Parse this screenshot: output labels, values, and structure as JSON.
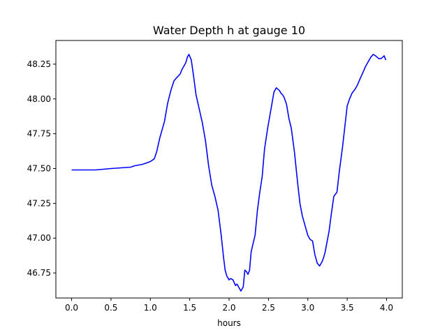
{
  "chart_data": {
    "type": "line",
    "title": "Water Depth h at gauge 10",
    "xlabel": "hours",
    "ylabel": "",
    "xlim": [
      -0.2,
      4.2
    ],
    "ylim": [
      46.57,
      48.42
    ],
    "xticks": [
      0.0,
      0.5,
      1.0,
      1.5,
      2.0,
      2.5,
      3.0,
      3.5,
      4.0
    ],
    "xtick_labels": [
      "0.0",
      "0.5",
      "1.0",
      "1.5",
      "2.0",
      "2.5",
      "3.0",
      "3.5",
      "4.0"
    ],
    "yticks": [
      46.75,
      47.0,
      47.25,
      47.5,
      47.75,
      48.0,
      48.25
    ],
    "ytick_labels": [
      "46.75",
      "47.00",
      "47.25",
      "47.50",
      "47.75",
      "48.00",
      "48.25"
    ],
    "grid": false,
    "series": [
      {
        "name": "",
        "color": "#0000ff",
        "x": [
          0.0,
          0.3,
          0.5,
          0.75,
          0.8,
          0.9,
          1.0,
          1.05,
          1.08,
          1.12,
          1.18,
          1.22,
          1.26,
          1.3,
          1.33,
          1.38,
          1.4,
          1.42,
          1.45,
          1.47,
          1.49,
          1.52,
          1.55,
          1.58,
          1.62,
          1.66,
          1.7,
          1.74,
          1.78,
          1.82,
          1.86,
          1.9,
          1.93,
          1.95,
          1.97,
          2.0,
          2.02,
          2.05,
          2.08,
          2.1,
          2.12,
          2.15,
          2.18,
          2.2,
          2.22,
          2.24,
          2.26,
          2.28,
          2.3,
          2.33,
          2.36,
          2.39,
          2.42,
          2.45,
          2.49,
          2.53,
          2.57,
          2.6,
          2.62,
          2.64,
          2.66,
          2.68,
          2.7,
          2.73,
          2.76,
          2.79,
          2.83,
          2.87,
          2.9,
          2.93,
          2.96,
          3.0,
          3.03,
          3.06,
          3.09,
          3.12,
          3.15,
          3.18,
          3.2,
          3.22,
          3.24,
          3.27,
          3.3,
          3.33,
          3.37,
          3.4,
          3.44,
          3.47,
          3.5,
          3.53,
          3.56,
          3.6,
          3.63,
          3.66,
          3.7,
          3.73,
          3.76,
          3.8,
          3.83,
          3.86,
          3.9,
          3.93,
          3.95,
          3.97,
          3.99
        ],
        "y": [
          47.49,
          47.49,
          47.5,
          47.51,
          47.52,
          47.53,
          47.55,
          47.57,
          47.62,
          47.72,
          47.84,
          47.97,
          48.06,
          48.13,
          48.15,
          48.18,
          48.21,
          48.23,
          48.26,
          48.3,
          48.32,
          48.28,
          48.16,
          48.03,
          47.93,
          47.83,
          47.7,
          47.52,
          47.38,
          47.3,
          47.2,
          47.02,
          46.86,
          46.77,
          46.73,
          46.7,
          46.71,
          46.7,
          46.66,
          46.67,
          46.65,
          46.62,
          46.65,
          46.77,
          46.76,
          46.74,
          46.77,
          46.9,
          46.95,
          47.02,
          47.2,
          47.33,
          47.44,
          47.64,
          47.79,
          47.92,
          48.05,
          48.08,
          48.07,
          48.06,
          48.04,
          48.03,
          48.01,
          47.96,
          47.86,
          47.79,
          47.62,
          47.4,
          47.25,
          47.16,
          47.1,
          47.02,
          46.99,
          46.98,
          46.88,
          46.82,
          46.8,
          46.83,
          46.86,
          46.9,
          46.96,
          47.05,
          47.18,
          47.3,
          47.33,
          47.48,
          47.65,
          47.8,
          47.95,
          48.0,
          48.04,
          48.07,
          48.1,
          48.14,
          48.19,
          48.23,
          48.26,
          48.3,
          48.32,
          48.31,
          48.29,
          48.29,
          48.3,
          48.31,
          48.28
        ]
      }
    ]
  }
}
